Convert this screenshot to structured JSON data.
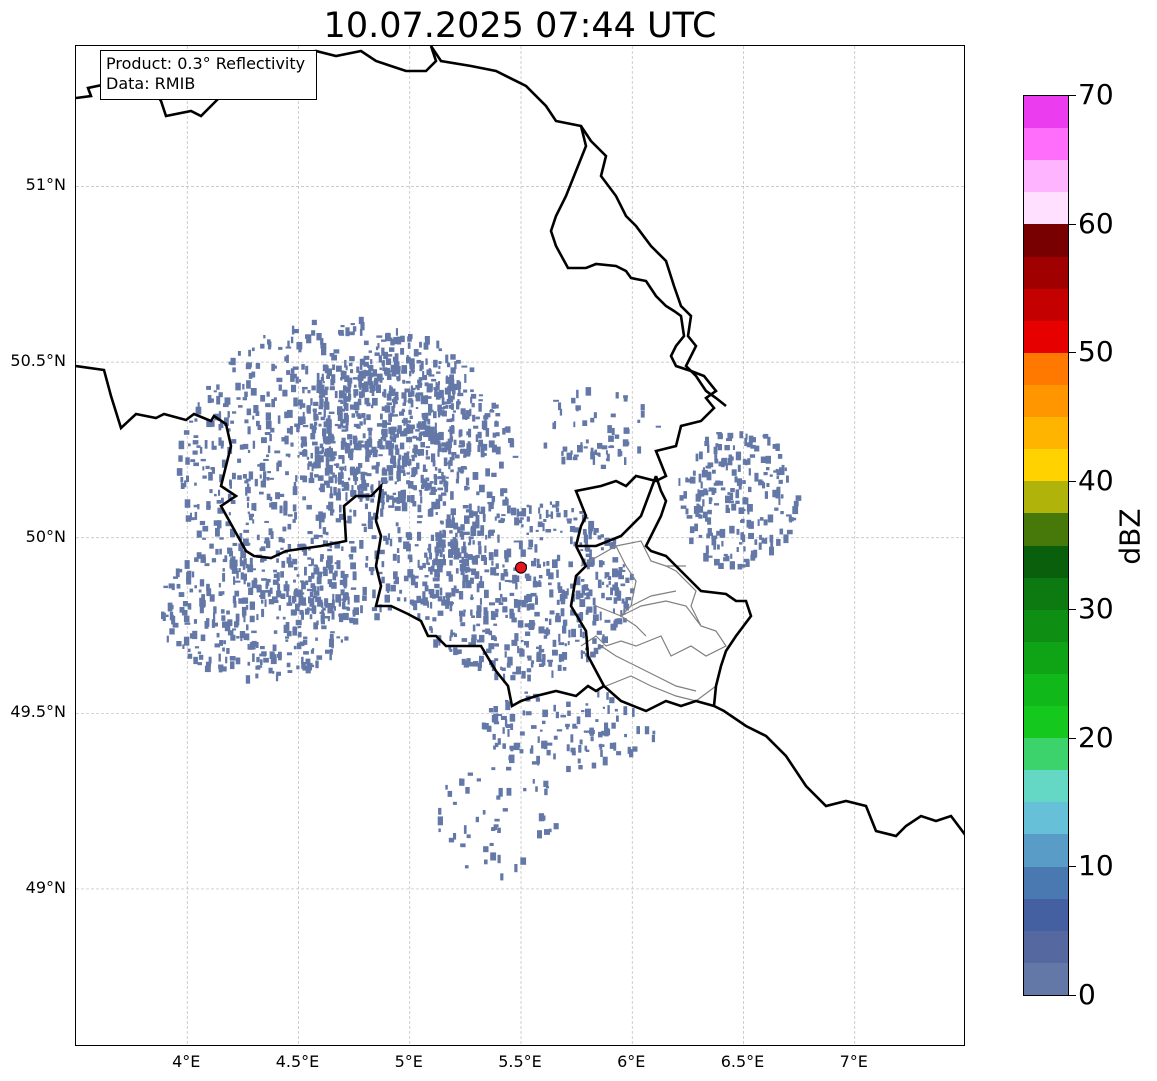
{
  "title": "10.07.2025 07:44 UTC",
  "info_box": {
    "line1": "Product: 0.3° Reflectivity",
    "line2": "Data: RMIB"
  },
  "map": {
    "extent": {
      "lon_min": 3.5,
      "lon_max": 7.5,
      "lat_min": 48.55,
      "lat_max": 51.4
    },
    "lat_ticks": [
      {
        "value": 51.0,
        "label": "51°N"
      },
      {
        "value": 50.5,
        "label": "50.5°N"
      },
      {
        "value": 50.0,
        "label": "50°N"
      },
      {
        "value": 49.5,
        "label": "49.5°N"
      },
      {
        "value": 49.0,
        "label": "49°N"
      }
    ],
    "lon_ticks": [
      {
        "value": 4.0,
        "label": "4°E"
      },
      {
        "value": 4.5,
        "label": "4.5°E"
      },
      {
        "value": 5.0,
        "label": "5°E"
      },
      {
        "value": 5.5,
        "label": "5.5°E"
      },
      {
        "value": 6.0,
        "label": "6°E"
      },
      {
        "value": 6.5,
        "label": "6.5°E"
      },
      {
        "value": 7.0,
        "label": "7°E"
      }
    ],
    "radar_site": {
      "lon": 5.5,
      "lat": 49.915,
      "color": "#e8141e"
    },
    "echo_color": "#6478a8",
    "border_color": "#000000",
    "admin_border_color": "#808080",
    "grid": true
  },
  "colorbar": {
    "unit": "dBZ",
    "min": 0,
    "max": 70,
    "ticks": [
      {
        "value": 0,
        "label": "0"
      },
      {
        "value": 10,
        "label": "10"
      },
      {
        "value": 20,
        "label": "20"
      },
      {
        "value": 30,
        "label": "30"
      },
      {
        "value": 40,
        "label": "40"
      },
      {
        "value": 50,
        "label": "50"
      },
      {
        "value": 60,
        "label": "60"
      },
      {
        "value": 70,
        "label": "70"
      }
    ],
    "colors": [
      "#6478a8",
      "#5568a0",
      "#4560a0",
      "#4a78b0",
      "#5a9cc8",
      "#66c0d8",
      "#64d8c4",
      "#3cd26c",
      "#14c81e",
      "#10b81a",
      "#0fa316",
      "#0e8f14",
      "#0c7a10",
      "#0a5f0c",
      "#46780a",
      "#b0b40a",
      "#ffd200",
      "#ffb400",
      "#ff9600",
      "#ff7800",
      "#e60000",
      "#c40000",
      "#a00000",
      "#780000",
      "#ffe0ff",
      "#ffb4ff",
      "#ff6efa",
      "#eb3cf0"
    ]
  }
}
